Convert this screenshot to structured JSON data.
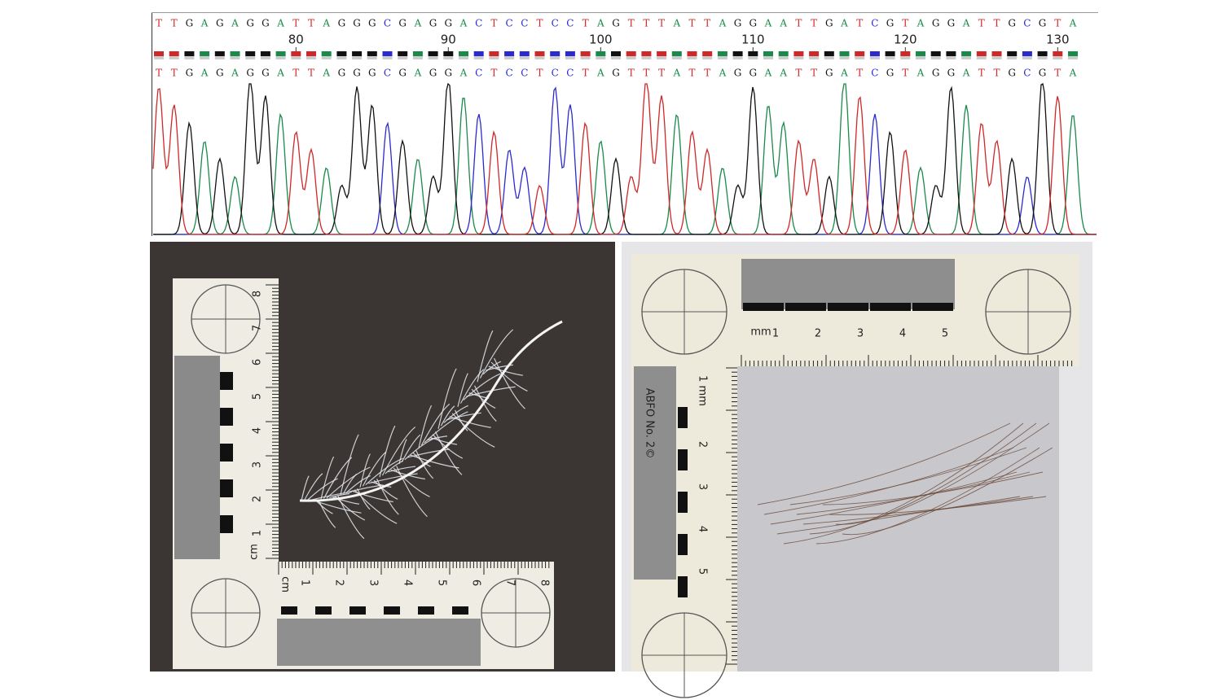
{
  "chromatogram": {
    "sequence_top": "TTGAGAGGATTAGGGCGAGGACTCCTCCTAGTTTATTAGGAATTGATCGTAGGATTGCGTA",
    "positions": [
      "80",
      "90",
      "100",
      "110",
      "120",
      "130"
    ],
    "sequence_bottom": "TTGAGAGGATTAGGGCGAGGACTCCTCCTAGTTTATTAGGAATTGATCGTAGGATTGCGTA",
    "base_colors": {
      "A": "#1a8a4a",
      "C": "#2a2ad0",
      "G": "#111111",
      "T": "#d02828"
    }
  },
  "feather_photo": {
    "vertical_ruler": {
      "unit": "cm",
      "labels": [
        "1",
        "2",
        "3",
        "4",
        "5",
        "6",
        "7",
        "8"
      ]
    },
    "horizontal_ruler": {
      "unit": "cm",
      "labels": [
        "1",
        "2",
        "3",
        "4",
        "5",
        "6",
        "7",
        "8"
      ]
    }
  },
  "hair_photo": {
    "horizontal_ruler": {
      "unit": "mm",
      "labels": [
        "1",
        "2",
        "3",
        "4",
        "5"
      ]
    },
    "vertical_ruler": {
      "unit": "1 mm",
      "labels": [
        "2",
        "3",
        "4",
        "5"
      ],
      "brand": "ABFO No. 2©"
    }
  }
}
